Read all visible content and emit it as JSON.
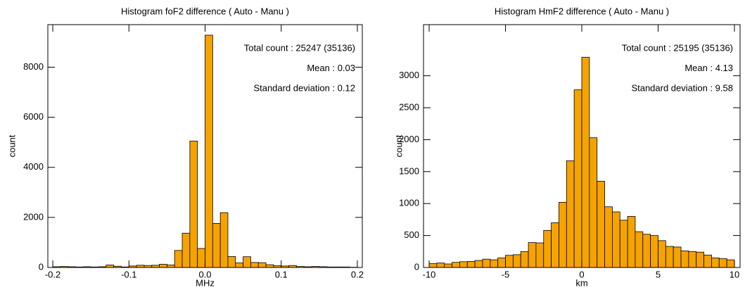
{
  "chart_data": [
    {
      "type": "histogram",
      "title": "Histogram foF2 difference ( Auto - Manu )",
      "x_label": "MHz",
      "y_label": "count",
      "annotations": [
        "Total count : 25247 (35136)",
        "Mean : 0.03",
        "Standard deviation : 0.12"
      ],
      "bins": [
        -0.2,
        -0.19,
        -0.18,
        -0.17,
        -0.16,
        -0.15,
        -0.14,
        -0.13,
        -0.12,
        -0.11,
        -0.1,
        -0.09,
        -0.08,
        -0.07,
        -0.06,
        -0.05,
        -0.04,
        -0.03,
        -0.02,
        -0.01,
        0,
        0.01,
        0.02,
        0.03,
        0.04,
        0.05,
        0.06,
        0.07,
        0.08,
        0.09,
        0.1,
        0.11,
        0.12,
        0.13,
        0.14,
        0.15,
        0.16,
        0.17,
        0.18,
        0.19,
        0.2
      ],
      "values": [
        30,
        40,
        30,
        20,
        30,
        20,
        30,
        100,
        50,
        20,
        60,
        90,
        80,
        90,
        130,
        100,
        680,
        1370,
        5050,
        760,
        9280,
        1760,
        2190,
        440,
        180,
        430,
        200,
        190,
        110,
        70,
        60,
        80,
        40,
        30,
        40,
        30,
        20,
        20,
        20,
        10
      ],
      "color": "#f5a300",
      "xlim": [
        -0.2065,
        0.2065
      ],
      "xticks": [
        -0.2,
        -0.1,
        {
          "value": 0,
          "label": "0.0"
        },
        0.1,
        0.2
      ],
      "ylim": [
        0,
        9700
      ],
      "yticks": [
        0,
        2000,
        4000,
        6000,
        8000
      ]
    },
    {
      "type": "histogram",
      "title": "Histogram HmF2 difference ( Auto - Manu )",
      "x_label": "km",
      "y_label": "count",
      "annotations": [
        "Total count : 25195 (35136)",
        "Mean : 4.13",
        "Standard deviation : 9.58"
      ],
      "bins": [
        -10,
        -9.5,
        -9,
        -8.5,
        -8,
        -7.5,
        -7,
        -6.5,
        -6,
        -5.5,
        -5,
        -4.5,
        -4,
        -3.5,
        -3,
        -2.5,
        -2,
        -1.5,
        -1,
        -0.5,
        0,
        0.5,
        1,
        1.5,
        2,
        2.5,
        3,
        3.5,
        4,
        4.5,
        5,
        5.5,
        6,
        6.5,
        7,
        7.5,
        8,
        8.5,
        9,
        9.5,
        10
      ],
      "values": [
        60,
        70,
        55,
        80,
        90,
        95,
        110,
        130,
        120,
        150,
        190,
        200,
        250,
        390,
        385,
        580,
        700,
        1020,
        1670,
        2780,
        3290,
        2030,
        1350,
        950,
        870,
        740,
        800,
        560,
        520,
        500,
        420,
        330,
        320,
        260,
        250,
        240,
        195,
        150,
        140,
        120
      ],
      "color": "#f5a300",
      "xlim": [
        -10.37,
        10.37
      ],
      "xticks": [
        -10,
        -5,
        0,
        5,
        10
      ],
      "ylim": [
        0,
        3800
      ],
      "yticks": [
        0,
        500,
        1000,
        1500,
        2000,
        2500,
        3000
      ]
    }
  ]
}
